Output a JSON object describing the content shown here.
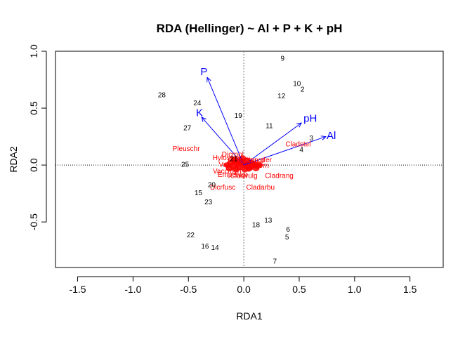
{
  "chart_data": {
    "type": "scatter",
    "title": "RDA (Hellinger) ~ Al + P + K + pH",
    "xlabel": "RDA1",
    "ylabel": "RDA2",
    "xlim": [
      -1.7,
      1.8
    ],
    "ylim": [
      -0.9,
      1.0
    ],
    "x_ticks": [
      -1.5,
      -1.0,
      -0.5,
      0.0,
      0.5,
      1.0,
      1.5
    ],
    "x_tick_labels": [
      "-1.5",
      "-1.0",
      "-0.5",
      "0.0",
      "0.5",
      "1.0",
      "1.5"
    ],
    "y_ticks": [
      -0.5,
      0.0,
      0.5,
      1.0
    ],
    "y_tick_labels": [
      "-0.5",
      "0.0",
      "0.5",
      "1.0"
    ],
    "zero_lines": true,
    "grid": false,
    "legend": "none",
    "colors": {
      "sites": "#000000",
      "species": "#ff0000",
      "env": "#0000ff"
    },
    "sites": [
      {
        "label": "9",
        "x": 0.35,
        "y": 0.94
      },
      {
        "label": "10",
        "x": 0.48,
        "y": 0.72
      },
      {
        "label": "2",
        "x": 0.53,
        "y": 0.67
      },
      {
        "label": "12",
        "x": 0.34,
        "y": 0.61
      },
      {
        "label": "28",
        "x": -0.74,
        "y": 0.62
      },
      {
        "label": "24",
        "x": -0.42,
        "y": 0.55
      },
      {
        "label": "19",
        "x": -0.05,
        "y": 0.44
      },
      {
        "label": "11",
        "x": 0.23,
        "y": 0.35
      },
      {
        "label": "27",
        "x": -0.51,
        "y": 0.33
      },
      {
        "label": "3",
        "x": 0.61,
        "y": 0.24
      },
      {
        "label": "4",
        "x": 0.52,
        "y": 0.14
      },
      {
        "label": "21",
        "x": -0.09,
        "y": 0.06
      },
      {
        "label": "25",
        "x": -0.53,
        "y": 0.01
      },
      {
        "label": "20",
        "x": -0.29,
        "y": -0.17
      },
      {
        "label": "15",
        "x": -0.41,
        "y": -0.24
      },
      {
        "label": "23",
        "x": -0.32,
        "y": -0.32
      },
      {
        "label": "13",
        "x": 0.22,
        "y": -0.48
      },
      {
        "label": "18",
        "x": 0.11,
        "y": -0.52
      },
      {
        "label": "6",
        "x": 0.4,
        "y": -0.56
      },
      {
        "label": "22",
        "x": -0.48,
        "y": -0.61
      },
      {
        "label": "5",
        "x": 0.39,
        "y": -0.63
      },
      {
        "label": "16",
        "x": -0.35,
        "y": -0.71
      },
      {
        "label": "14",
        "x": -0.26,
        "y": -0.72
      },
      {
        "label": "7",
        "x": 0.28,
        "y": -0.84
      }
    ],
    "species": [
      {
        "label": "Pleuschr",
        "x": -0.52,
        "y": 0.15
      },
      {
        "label": "Cladstel",
        "x": 0.49,
        "y": 0.19
      },
      {
        "label": "Dicrpol",
        "x": -0.1,
        "y": 0.1
      },
      {
        "label": "Hylosple",
        "x": -0.16,
        "y": 0.07
      },
      {
        "label": "Cladarbu_a",
        "x": 0.02,
        "y": 0.05
      },
      {
        "label": "Cladrangifer",
        "x": 0.08,
        "y": 0.05
      },
      {
        "label": "Vaccviti",
        "x": -0.12,
        "y": 0.01
      },
      {
        "label": "Vaccmyrt",
        "x": -0.15,
        "y": -0.05
      },
      {
        "label": "Empenigr",
        "x": -0.1,
        "y": -0.08
      },
      {
        "label": "Cladrang",
        "x": 0.32,
        "y": -0.09
      },
      {
        "label": "Cladvulg",
        "x": 0.0,
        "y": -0.09
      },
      {
        "label": "Dicrfusc",
        "x": -0.19,
        "y": -0.19
      },
      {
        "label": "Cladarbu",
        "x": 0.15,
        "y": -0.19
      },
      {
        "label": "Barbhatc",
        "x": 0.05,
        "y": 0.02
      },
      {
        "label": "Callvulg",
        "x": -0.05,
        "y": -0.02
      },
      {
        "label": "Cladcorn",
        "x": 0.1,
        "y": 0.0
      }
    ],
    "species_cluster": [
      [
        -0.15,
        0.0
      ],
      [
        -0.12,
        0.02
      ],
      [
        -0.1,
        -0.01
      ],
      [
        -0.08,
        0.03
      ],
      [
        -0.06,
        0.01
      ],
      [
        -0.04,
        -0.02
      ],
      [
        -0.02,
        0.02
      ],
      [
        0.0,
        0.0
      ],
      [
        0.02,
        -0.01
      ],
      [
        0.04,
        0.01
      ],
      [
        0.06,
        -0.02
      ],
      [
        0.08,
        0.0
      ],
      [
        0.1,
        0.01
      ],
      [
        0.12,
        -0.01
      ],
      [
        0.14,
        0.0
      ],
      [
        -0.09,
        0.05
      ],
      [
        -0.03,
        0.04
      ],
      [
        0.03,
        0.04
      ],
      [
        0.07,
        0.02
      ],
      [
        -0.13,
        -0.03
      ],
      [
        -0.07,
        -0.04
      ],
      [
        0.01,
        -0.04
      ],
      [
        0.05,
        -0.03
      ],
      [
        0.11,
        -0.03
      ],
      [
        -0.01,
        0.06
      ]
    ],
    "env_vectors": [
      {
        "label": "P",
        "x": -0.33,
        "y": 0.77,
        "label_x": -0.36,
        "label_y": 0.82
      },
      {
        "label": "K",
        "x": -0.38,
        "y": 0.42,
        "label_x": -0.4,
        "label_y": 0.46
      },
      {
        "label": "pH",
        "x": 0.52,
        "y": 0.37,
        "label_x": 0.6,
        "label_y": 0.41
      },
      {
        "label": "Al",
        "x": 0.74,
        "y": 0.25,
        "label_x": 0.79,
        "label_y": 0.26
      }
    ]
  }
}
